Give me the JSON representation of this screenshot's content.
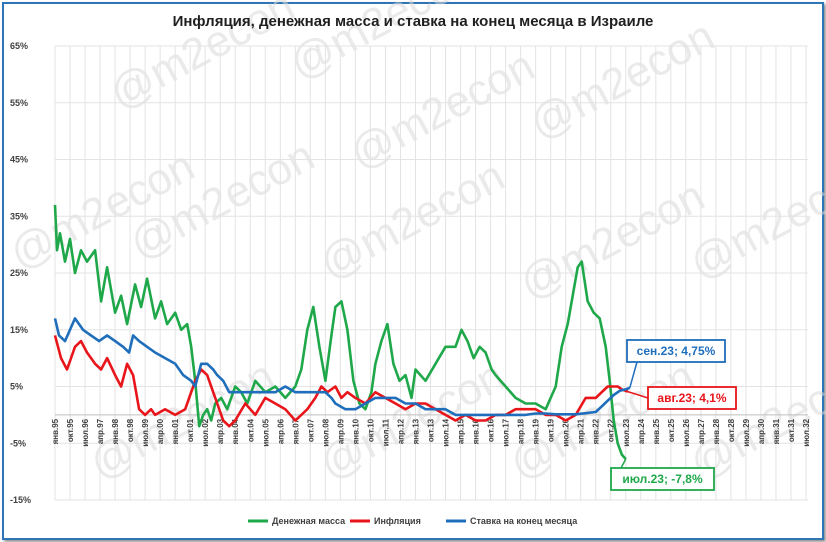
{
  "chart_data": {
    "type": "line",
    "title": "Инфляция, денежная масса и ставка на конец месяца в Израиле",
    "xlabel": "",
    "ylabel": "",
    "ylim": [
      -15,
      65
    ],
    "y_ticks": [
      -15,
      -5,
      5,
      15,
      25,
      35,
      45,
      55,
      65
    ],
    "y_tick_labels": [
      "-15%",
      "-5%",
      "5%",
      "15%",
      "25%",
      "35%",
      "45%",
      "55%",
      "65%"
    ],
    "grid": true,
    "legend": "bottom",
    "x_ticks": [
      "янв.95",
      "окт.95",
      "июл.96",
      "апр.97",
      "янв.98",
      "окт.98",
      "июл.99",
      "апр.00",
      "янв.01",
      "окт.01",
      "июл.02",
      "апр.03",
      "янв.04",
      "окт.04",
      "июл.05",
      "апр.06",
      "янв.07",
      "окт.07",
      "июл.08",
      "апр.09",
      "янв.10",
      "окт.10",
      "июл.11",
      "апр.12",
      "янв.13",
      "окт.13",
      "июл.14",
      "апр.15",
      "янв.16",
      "окт.16",
      "июл.17",
      "апр.18",
      "янв.19",
      "окт.19",
      "июл.20",
      "апр.21",
      "янв.22",
      "окт.22",
      "июл.23",
      "апр.24",
      "янв.25",
      "окт.25",
      "июл.26",
      "апр.27",
      "янв.28",
      "окт.28",
      "июл.29",
      "апр.30",
      "янв.31",
      "окт.31",
      "июл.32"
    ],
    "series": [
      {
        "name": "Денежная масса",
        "color": "#1fa84a",
        "x": [
          1995.0,
          1995.1,
          1995.25,
          1995.5,
          1995.75,
          1996.0,
          1996.3,
          1996.6,
          1997.0,
          1997.3,
          1997.6,
          1998.0,
          1998.3,
          1998.6,
          1999.0,
          1999.3,
          1999.6,
          2000.0,
          2000.3,
          2000.6,
          2001.0,
          2001.3,
          2001.6,
          2001.8,
          2002.0,
          2002.2,
          2002.4,
          2002.6,
          2002.8,
          2003.0,
          2003.3,
          2003.6,
          2004.0,
          2004.3,
          2004.6,
          2005.0,
          2005.5,
          2006.0,
          2006.5,
          2007.0,
          2007.3,
          2007.6,
          2007.9,
          2008.2,
          2008.5,
          2008.8,
          2009.0,
          2009.3,
          2009.6,
          2009.9,
          2010.2,
          2010.5,
          2010.8,
          2011.0,
          2011.3,
          2011.6,
          2011.9,
          2012.2,
          2012.5,
          2012.8,
          2013.0,
          2013.5,
          2014.0,
          2014.5,
          2015.0,
          2015.3,
          2015.6,
          2015.9,
          2016.2,
          2016.5,
          2016.8,
          2017.0,
          2017.5,
          2018.0,
          2018.5,
          2019.0,
          2019.5,
          2020.0,
          2020.3,
          2020.6,
          2020.9,
          2021.1,
          2021.3,
          2021.6,
          2021.9,
          2022.2,
          2022.5,
          2022.7,
          2022.9,
          2023.1,
          2023.3,
          2023.5
        ],
        "y": [
          37,
          29,
          32,
          27,
          31,
          25,
          29,
          27,
          29,
          20,
          26,
          18,
          21,
          16,
          23,
          19,
          24,
          17,
          20,
          16,
          18,
          15,
          16,
          12,
          6,
          -2,
          0,
          1,
          -1,
          2,
          3,
          1,
          5,
          4,
          2,
          6,
          4,
          5,
          3,
          5,
          8,
          15,
          19,
          12,
          6,
          14,
          19,
          20,
          15,
          6,
          2,
          1,
          4,
          9,
          13,
          16,
          9,
          6,
          7,
          3,
          8,
          6,
          9,
          12,
          12,
          15,
          13,
          10,
          12,
          11,
          8,
          7,
          5,
          3,
          2,
          2,
          1,
          5,
          12,
          16,
          22,
          26,
          27,
          20,
          18,
          17,
          12,
          6,
          -1,
          -5,
          -7,
          -7.8
        ]
      },
      {
        "name": "Инфляция",
        "color": "#e8151b",
        "x": [
          1995.0,
          1995.3,
          1995.6,
          1996.0,
          1996.3,
          1996.6,
          1997.0,
          1997.3,
          1997.6,
          1998.0,
          1998.3,
          1998.6,
          1998.9,
          1999.2,
          1999.5,
          1999.8,
          2000.0,
          2000.5,
          2001.0,
          2001.5,
          2002.0,
          2002.3,
          2002.6,
          2002.9,
          2003.1,
          2003.4,
          2003.7,
          2004.0,
          2004.5,
          2005.0,
          2005.5,
          2006.0,
          2006.5,
          2007.0,
          2007.3,
          2007.6,
          2008.0,
          2008.3,
          2008.6,
          2009.0,
          2009.3,
          2009.6,
          2010.0,
          2010.5,
          2011.0,
          2011.5,
          2012.0,
          2012.5,
          2013.0,
          2013.5,
          2014.0,
          2014.5,
          2015.0,
          2015.5,
          2016.0,
          2016.5,
          2017.0,
          2017.5,
          2018.0,
          2018.5,
          2019.0,
          2019.5,
          2020.0,
          2020.5,
          2021.0,
          2021.5,
          2022.0,
          2022.3,
          2022.6,
          2022.9,
          2023.1,
          2023.3,
          2023.6
        ],
        "y": [
          14,
          10,
          8,
          12,
          13,
          11,
          9,
          8,
          10,
          7,
          5,
          9,
          7,
          1,
          0,
          1,
          0,
          1,
          0,
          1,
          6,
          8,
          7,
          4,
          2,
          -1,
          -2,
          -1,
          2,
          0,
          3,
          2,
          1,
          -1,
          0,
          1,
          3,
          5,
          4,
          5,
          3,
          4,
          3,
          2,
          4,
          3,
          2,
          1,
          2,
          2,
          1,
          0,
          -1,
          0,
          -1,
          -1,
          0,
          0,
          1,
          1,
          1,
          0,
          0,
          -1,
          0,
          3,
          3,
          4,
          5,
          5,
          5,
          4.5,
          4.1
        ]
      },
      {
        "name": "Ставка на конец месяца",
        "color": "#1f6ebc",
        "x": [
          1995.0,
          1995.2,
          1995.5,
          1996.0,
          1996.4,
          1996.8,
          1997.2,
          1997.6,
          1998.0,
          1998.4,
          1998.7,
          1998.9,
          1999.2,
          1999.6,
          2000.0,
          2000.5,
          2001.0,
          2001.4,
          2001.8,
          2002.0,
          2002.3,
          2002.6,
          2002.9,
          2003.1,
          2003.4,
          2003.7,
          2004.0,
          2004.5,
          2005.0,
          2005.5,
          2006.0,
          2006.5,
          2007.0,
          2007.5,
          2008.0,
          2008.5,
          2008.8,
          2009.0,
          2009.5,
          2010.0,
          2010.5,
          2011.0,
          2011.5,
          2012.0,
          2012.5,
          2013.0,
          2013.5,
          2014.0,
          2014.5,
          2015.0,
          2016.0,
          2017.0,
          2018.0,
          2018.5,
          2019.0,
          2019.5,
          2020.0,
          2021.0,
          2022.0,
          2022.3,
          2022.6,
          2022.9,
          2023.2,
          2023.5,
          2023.7
        ],
        "y": [
          17,
          14,
          13,
          17,
          15,
          14,
          13,
          14,
          13,
          12,
          11,
          14,
          13,
          12,
          11,
          10,
          9,
          7,
          6,
          5,
          9,
          9,
          8,
          7,
          6,
          4,
          4,
          4,
          4,
          4,
          4,
          5,
          4,
          4,
          4,
          4,
          3,
          2,
          1,
          1,
          2,
          3,
          3,
          3,
          2,
          2,
          1,
          1,
          1,
          0,
          0,
          0,
          0,
          0,
          0.25,
          0.25,
          0.1,
          0.1,
          0.5,
          1.5,
          2.5,
          3.5,
          4.25,
          4.5,
          4.75
        ]
      }
    ],
    "callouts": [
      {
        "text": "сен.23; 4,75%",
        "series": 2,
        "color": "#1f6ebc",
        "x": 2023.7,
        "y": 4.75
      },
      {
        "text": "авг.23; 4,1%",
        "series": 1,
        "color": "#e8151b",
        "x": 2023.6,
        "y": 4.1
      },
      {
        "text": "июл.23; -7,8%",
        "series": 0,
        "color": "#1fa84a",
        "x": 2023.5,
        "y": -7.8
      }
    ],
    "watermark": "@m2econ"
  }
}
